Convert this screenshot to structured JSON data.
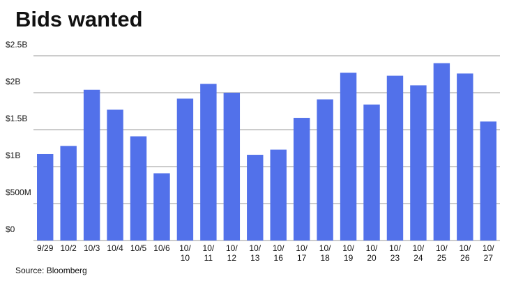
{
  "chart_data": {
    "type": "bar",
    "title": "Bids wanted",
    "source": "Source: Bloomberg",
    "categories": [
      "9/29",
      "10/2",
      "10/3",
      "10/4",
      "10/5",
      "10/6",
      "10/\n10",
      "10/\n11",
      "10/\n12",
      "10/\n13",
      "10/\n16",
      "10/\n17",
      "10/\n18",
      "10/\n19",
      "10/\n20",
      "10/\n23",
      "10/\n24",
      "10/\n25",
      "10/\n26",
      "10/\n27"
    ],
    "values": [
      1.17,
      1.28,
      2.04,
      1.77,
      1.41,
      0.91,
      1.92,
      2.12,
      2.0,
      1.16,
      1.23,
      1.66,
      1.91,
      2.27,
      1.84,
      2.23,
      2.1,
      2.4,
      2.26,
      1.61
    ],
    "color": "#5271ea",
    "ylim": [
      0,
      2.5
    ],
    "yticks": [
      {
        "value": 0,
        "label": "$0"
      },
      {
        "value": 0.5,
        "label": "$500M"
      },
      {
        "value": 1,
        "label": "$1B"
      },
      {
        "value": 1.5,
        "label": "$1.5B"
      },
      {
        "value": 2,
        "label": "$2B"
      },
      {
        "value": 2.5,
        "label": "$2.5B"
      }
    ],
    "grid": true
  }
}
